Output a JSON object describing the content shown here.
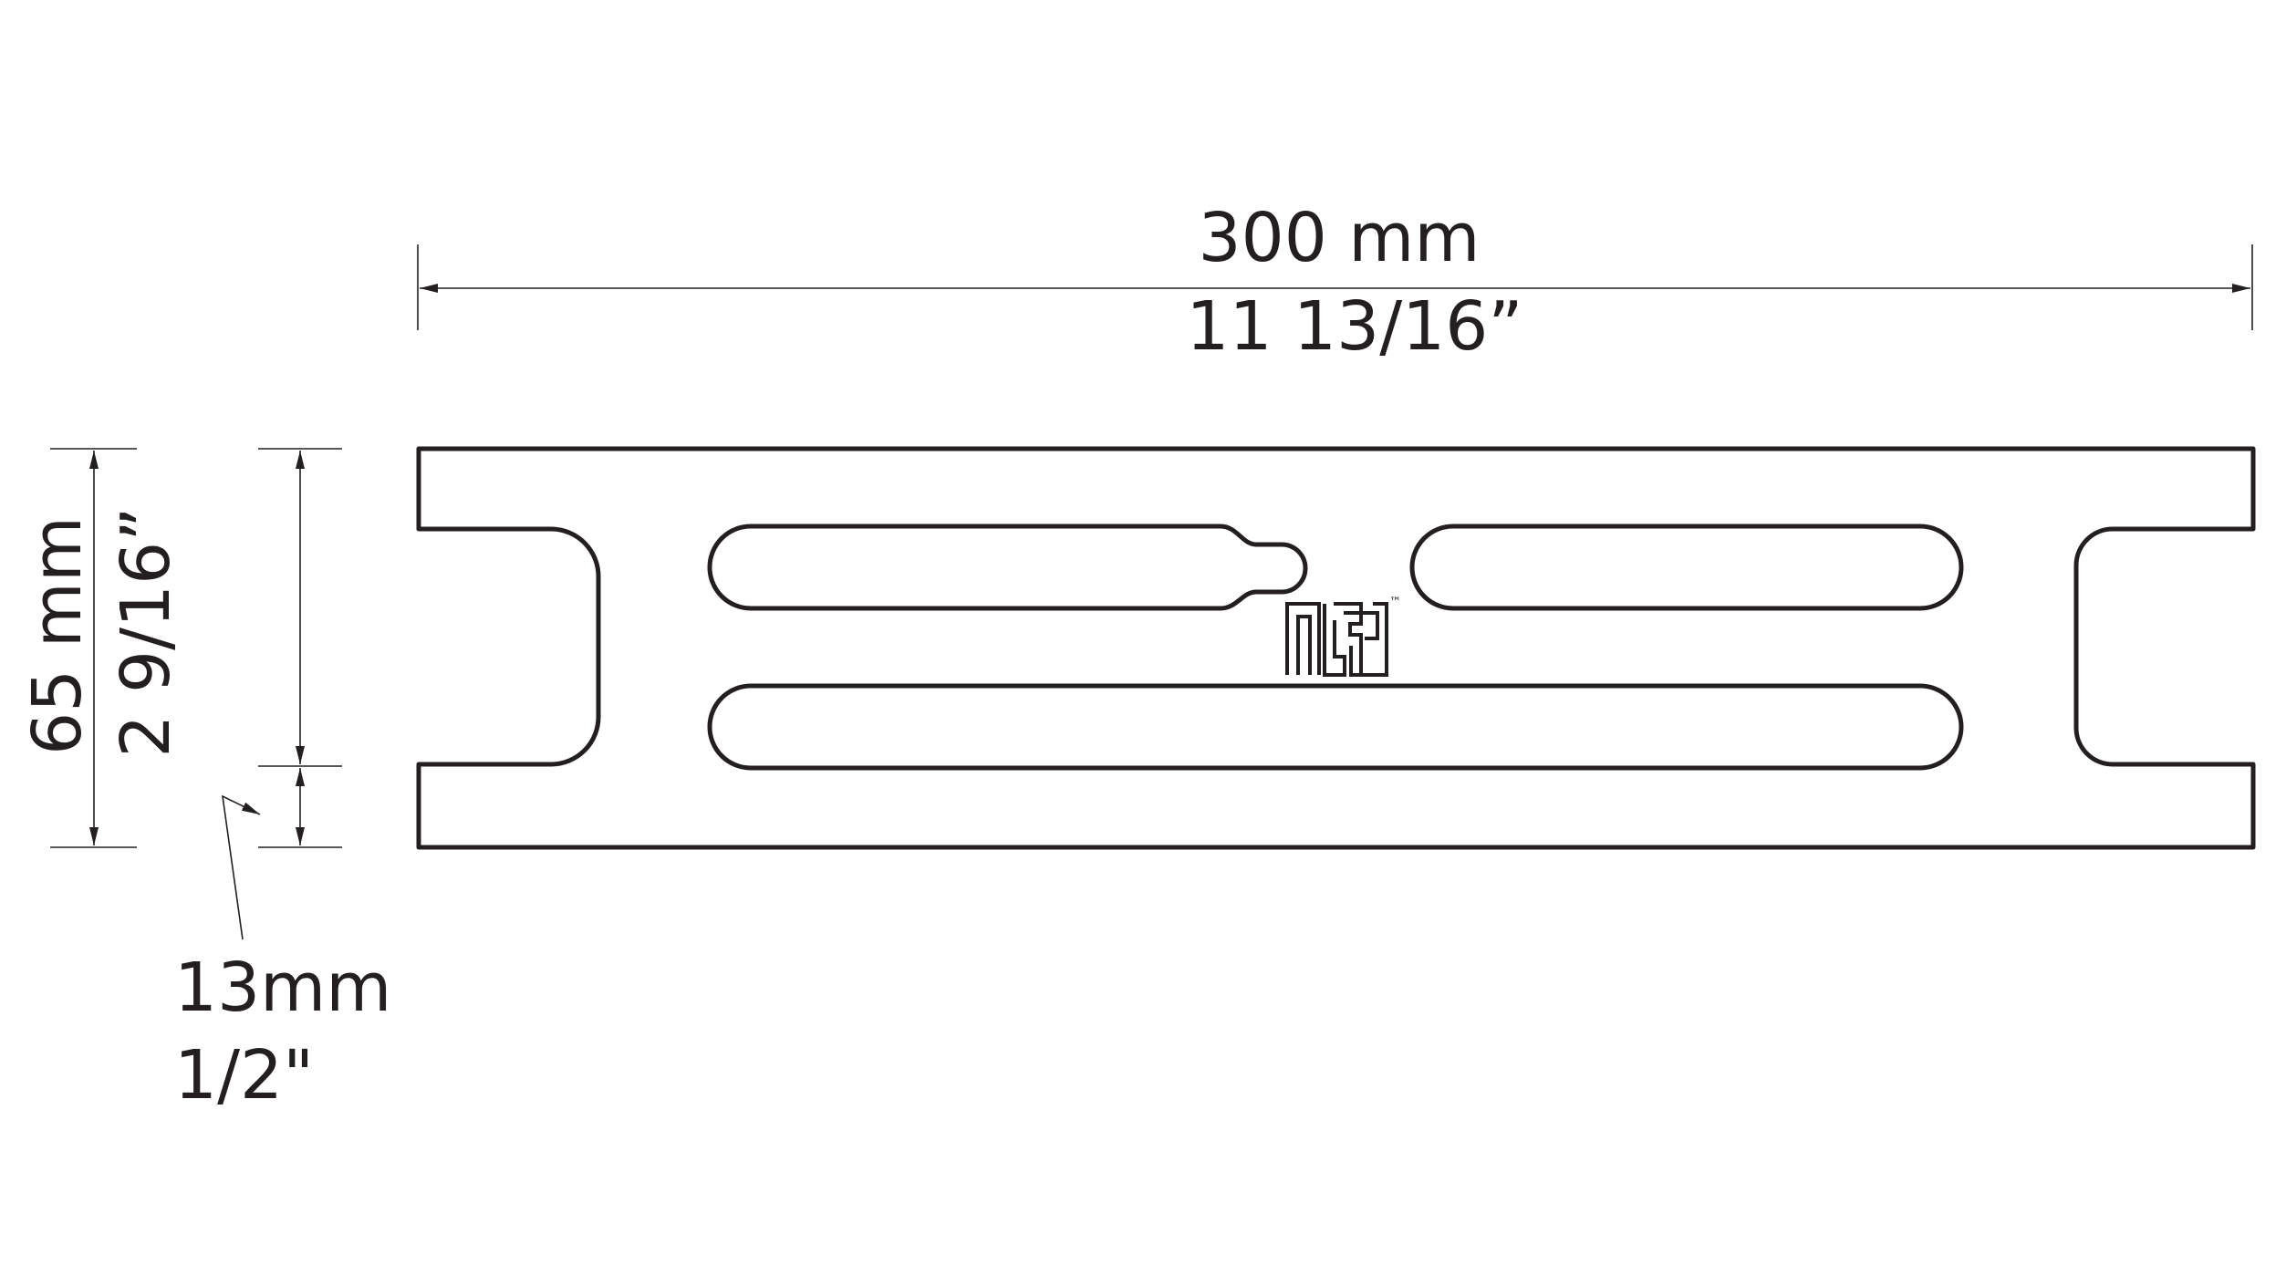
{
  "dimensions": {
    "length_metric": "300 mm",
    "length_imperial": "11 13/16”",
    "height_metric": "65 mm",
    "height_imperial": "2 9/16”",
    "foot_metric": "13mm",
    "foot_imperial": "1/2\""
  },
  "logo": {
    "trademark": "™"
  },
  "colors": {
    "ink": "#231f20",
    "background": "#ffffff"
  }
}
